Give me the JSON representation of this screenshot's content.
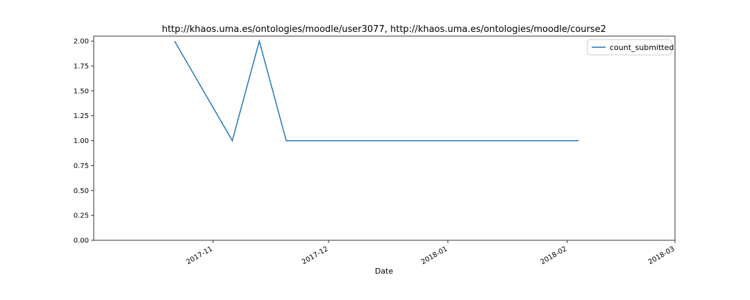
{
  "chart_data": {
    "type": "line",
    "title": "http://khaos.uma.es/ontologies/moodle/user3077, http://khaos.uma.es/ontologies/moodle/course2",
    "xlabel": "Date",
    "ylabel": "",
    "x_type": "date",
    "xlim": [
      "2017-10-01",
      "2018-03-01"
    ],
    "ylim": [
      0,
      2.05
    ],
    "yticks": [
      0.0,
      0.25,
      0.5,
      0.75,
      1.0,
      1.25,
      1.5,
      1.75,
      2.0
    ],
    "ytick_labels": [
      "0.00",
      "0.25",
      "0.50",
      "0.75",
      "1.00",
      "1.25",
      "1.50",
      "1.75",
      "2.00"
    ],
    "xticks": [
      "2017-11-01",
      "2017-12-01",
      "2018-01-01",
      "2018-02-01",
      "2018-03-01"
    ],
    "xtick_labels": [
      "2017-11",
      "2017-12",
      "2018-01",
      "2018-02",
      "2018-03"
    ],
    "grid": false,
    "legend_position": "top-right",
    "series": [
      {
        "name": "count_submitted",
        "color": "#1f77b4",
        "x": [
          "2017-10-22",
          "2017-11-06",
          "2017-11-13",
          "2017-11-20",
          "2018-02-04"
        ],
        "y": [
          2,
          1,
          2,
          1,
          1
        ]
      }
    ]
  }
}
